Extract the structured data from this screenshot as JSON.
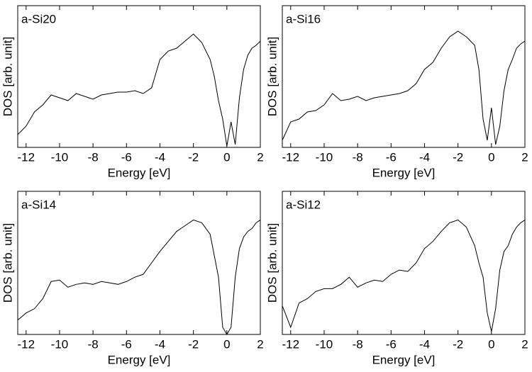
{
  "chart_data": [
    {
      "type": "line",
      "title": "a-Si20",
      "xlabel": "Energy [eV]",
      "ylabel": "DOS [arb. unit]",
      "color": "#000000",
      "xlim": [
        -12.5,
        2
      ],
      "ylim": [
        0,
        1
      ],
      "xticks": [
        -12,
        -10,
        -8,
        -6,
        -4,
        -2,
        0,
        2
      ],
      "x": [
        -12.5,
        -12,
        -11.5,
        -11,
        -10.5,
        -10,
        -9.5,
        -9,
        -8.5,
        -8,
        -7.5,
        -7,
        -6.5,
        -6,
        -5.5,
        -5,
        -4.5,
        -4,
        -3.5,
        -3,
        -2.5,
        -2,
        -1.5,
        -1,
        -0.75,
        -0.5,
        -0.25,
        0,
        0.25,
        0.5,
        0.75,
        1,
        1.25,
        1.5,
        1.75,
        2
      ],
      "values": [
        0.09,
        0.15,
        0.25,
        0.3,
        0.37,
        0.35,
        0.33,
        0.38,
        0.36,
        0.34,
        0.37,
        0.38,
        0.39,
        0.39,
        0.4,
        0.38,
        0.42,
        0.62,
        0.68,
        0.7,
        0.75,
        0.8,
        0.74,
        0.62,
        0.5,
        0.33,
        0.2,
        0.01,
        0.18,
        0.02,
        0.35,
        0.55,
        0.65,
        0.7,
        0.72,
        0.75
      ]
    },
    {
      "type": "line",
      "title": "a-Si16",
      "xlabel": "Energy [eV]",
      "ylabel": "DOS [arb. unit]",
      "color": "#000000",
      "xlim": [
        -12.5,
        2
      ],
      "ylim": [
        0,
        1
      ],
      "xticks": [
        -12,
        -10,
        -8,
        -6,
        -4,
        -2,
        0,
        2
      ],
      "x": [
        -12.5,
        -12,
        -11.5,
        -11,
        -10.5,
        -10,
        -9.5,
        -9,
        -8.5,
        -8,
        -7.5,
        -7,
        -6.5,
        -6,
        -5.5,
        -5,
        -4.5,
        -4,
        -3.5,
        -3,
        -2.5,
        -2,
        -1.5,
        -1,
        -0.75,
        -0.5,
        -0.25,
        0,
        0.25,
        0.5,
        0.75,
        1,
        1.25,
        1.5,
        1.75,
        2
      ],
      "values": [
        0.05,
        0.18,
        0.2,
        0.25,
        0.26,
        0.3,
        0.38,
        0.33,
        0.34,
        0.36,
        0.33,
        0.35,
        0.36,
        0.37,
        0.38,
        0.4,
        0.45,
        0.55,
        0.6,
        0.7,
        0.78,
        0.82,
        0.78,
        0.72,
        0.55,
        0.2,
        0.05,
        0.28,
        0.02,
        0.15,
        0.4,
        0.55,
        0.62,
        0.7,
        0.73,
        0.75
      ]
    },
    {
      "type": "line",
      "title": "a-Si14",
      "xlabel": "Energy [eV]",
      "ylabel": "DOS [arb. unit]",
      "color": "#000000",
      "xlim": [
        -12.5,
        2
      ],
      "ylim": [
        0,
        1
      ],
      "xticks": [
        -12,
        -10,
        -8,
        -6,
        -4,
        -2,
        0,
        2
      ],
      "x": [
        -12.5,
        -12,
        -11.5,
        -11,
        -10.5,
        -10,
        -9.5,
        -9,
        -8.5,
        -8,
        -7.5,
        -7,
        -6.5,
        -6,
        -5.5,
        -5,
        -4.5,
        -4,
        -3.5,
        -3,
        -2.5,
        -2,
        -1.5,
        -1,
        -0.75,
        -0.5,
        -0.25,
        0,
        0.25,
        0.5,
        0.75,
        1,
        1.25,
        1.5,
        1.75,
        2
      ],
      "values": [
        0.1,
        0.15,
        0.18,
        0.25,
        0.37,
        0.38,
        0.33,
        0.35,
        0.36,
        0.35,
        0.37,
        0.36,
        0.35,
        0.37,
        0.4,
        0.42,
        0.5,
        0.58,
        0.65,
        0.72,
        0.76,
        0.8,
        0.78,
        0.7,
        0.55,
        0.4,
        0.05,
        0.0,
        0.05,
        0.4,
        0.6,
        0.68,
        0.72,
        0.74,
        0.78,
        0.8
      ]
    },
    {
      "type": "line",
      "title": "a-Si12",
      "xlabel": "Energy [eV]",
      "ylabel": "DOS [arb. unit]",
      "color": "#000000",
      "xlim": [
        -12.5,
        2
      ],
      "ylim": [
        0,
        1
      ],
      "xticks": [
        -12,
        -10,
        -8,
        -6,
        -4,
        -2,
        0,
        2
      ],
      "x": [
        -12.5,
        -12,
        -11.5,
        -11,
        -10.5,
        -10,
        -9.5,
        -9,
        -8.5,
        -8,
        -7.5,
        -7,
        -6.5,
        -6,
        -5.5,
        -5,
        -4.5,
        -4,
        -3.5,
        -3,
        -2.5,
        -2,
        -1.5,
        -1,
        -0.75,
        -0.5,
        -0.25,
        0,
        0.25,
        0.5,
        0.75,
        1,
        1.25,
        1.5,
        1.75,
        2
      ],
      "values": [
        0.2,
        0.05,
        0.22,
        0.25,
        0.3,
        0.32,
        0.32,
        0.35,
        0.4,
        0.33,
        0.36,
        0.38,
        0.37,
        0.42,
        0.45,
        0.44,
        0.5,
        0.6,
        0.65,
        0.72,
        0.78,
        0.8,
        0.75,
        0.62,
        0.5,
        0.4,
        0.15,
        0.02,
        0.18,
        0.45,
        0.58,
        0.62,
        0.7,
        0.75,
        0.78,
        0.8
      ]
    }
  ]
}
